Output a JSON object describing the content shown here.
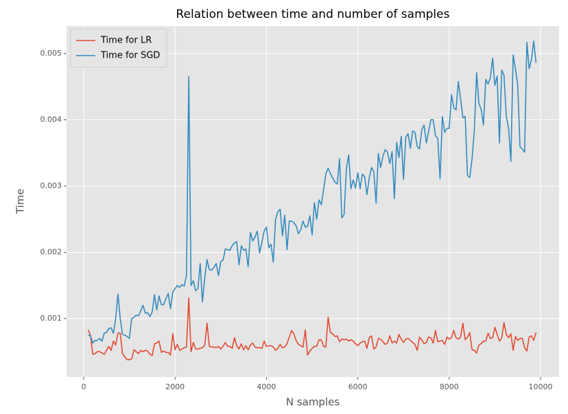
{
  "chart_data": {
    "type": "line",
    "title": "Relation between time and number of samples",
    "xlabel": "N samples",
    "ylabel": "Time",
    "x": [
      100,
      150,
      200,
      250,
      300,
      350,
      400,
      450,
      500,
      550,
      600,
      650,
      700,
      750,
      800,
      850,
      900,
      950,
      1000,
      1050,
      1100,
      1150,
      1200,
      1250,
      1300,
      1350,
      1400,
      1450,
      1500,
      1550,
      1600,
      1650,
      1700,
      1750,
      1800,
      1850,
      1900,
      1950,
      2000,
      2050,
      2100,
      2150,
      2200,
      2250,
      2300,
      2350,
      2400,
      2450,
      2500,
      2550,
      2600,
      2650,
      2700,
      2750,
      2800,
      2850,
      2900,
      2950,
      3000,
      3050,
      3100,
      3150,
      3200,
      3250,
      3300,
      3350,
      3400,
      3450,
      3500,
      3550,
      3600,
      3650,
      3700,
      3750,
      3800,
      3850,
      3900,
      3950,
      4000,
      4050,
      4100,
      4150,
      4200,
      4250,
      4300,
      4350,
      4400,
      4450,
      4500,
      4550,
      4600,
      4650,
      4700,
      4750,
      4800,
      4850,
      4900,
      4950,
      5000,
      5050,
      5100,
      5150,
      5200,
      5250,
      5300,
      5350,
      5400,
      5450,
      5500,
      5550,
      5600,
      5650,
      5700,
      5750,
      5800,
      5850,
      5900,
      5950,
      6000,
      6050,
      6100,
      6150,
      6200,
      6250,
      6300,
      6350,
      6400,
      6450,
      6500,
      6550,
      6600,
      6650,
      6700,
      6750,
      6800,
      6850,
      6900,
      6950,
      7000,
      7050,
      7100,
      7150,
      7200,
      7250,
      7300,
      7350,
      7400,
      7450,
      7500,
      7550,
      7600,
      7650,
      7700,
      7750,
      7800,
      7850,
      7900,
      7950,
      8000,
      8050,
      8100,
      8150,
      8200,
      8250,
      8300,
      8350,
      8400,
      8450,
      8500,
      8550,
      8600,
      8650,
      8700,
      8750,
      8800,
      8850,
      8900,
      8950,
      9000,
      9050,
      9100,
      9150,
      9200,
      9250,
      9300,
      9350,
      9400,
      9450,
      9500,
      9550,
      9600,
      9650,
      9700,
      9750,
      9800,
      9850,
      9900
    ],
    "series": [
      {
        "name": "Time for LR",
        "color": "#e24a33",
        "values": [
          0.00083,
          0.00074,
          0.00046,
          0.00047,
          0.0005,
          0.0005,
          0.00048,
          0.00046,
          0.00052,
          0.00058,
          0.00052,
          0.00066,
          0.0006,
          0.00078,
          0.00078,
          0.00047,
          0.00042,
          0.00038,
          0.00038,
          0.00039,
          0.00053,
          0.0005,
          0.00047,
          0.00052,
          0.0005,
          0.00052,
          0.00051,
          0.00046,
          0.00044,
          0.00062,
          0.00063,
          0.00066,
          0.00049,
          0.00051,
          0.00049,
          0.00049,
          0.00045,
          0.00077,
          0.00053,
          0.00061,
          0.00052,
          0.00054,
          0.00056,
          0.00057,
          0.00131,
          0.0005,
          0.00064,
          0.00054,
          0.00054,
          0.00055,
          0.00056,
          0.0006,
          0.00093,
          0.00058,
          0.00057,
          0.00057,
          0.00056,
          0.00058,
          0.00054,
          0.00058,
          0.00064,
          0.00058,
          0.00058,
          0.00055,
          0.00071,
          0.00059,
          0.00054,
          0.00062,
          0.00053,
          0.00059,
          0.00053,
          0.0006,
          0.00063,
          0.00057,
          0.00056,
          0.00056,
          0.00055,
          0.00066,
          0.00058,
          0.00059,
          0.00059,
          0.00057,
          0.00052,
          0.00055,
          0.00061,
          0.00056,
          0.00057,
          0.00062,
          0.00072,
          0.00082,
          0.00077,
          0.00067,
          0.00061,
          0.00059,
          0.00057,
          0.00083,
          0.00045,
          0.00051,
          0.00055,
          0.00058,
          0.00058,
          0.00068,
          0.00068,
          0.00058,
          0.00057,
          0.00102,
          0.00079,
          0.00077,
          0.00073,
          0.00074,
          0.00065,
          0.00069,
          0.00068,
          0.00069,
          0.00066,
          0.00068,
          0.00066,
          0.00062,
          0.00059,
          0.00063,
          0.00065,
          0.00066,
          0.00055,
          0.00071,
          0.00074,
          0.00054,
          0.00057,
          0.0007,
          0.00069,
          0.00065,
          0.00061,
          0.00063,
          0.00074,
          0.00063,
          0.00066,
          0.00063,
          0.00076,
          0.00069,
          0.00064,
          0.00069,
          0.0007,
          0.00067,
          0.00064,
          0.00061,
          0.00052,
          0.00072,
          0.00068,
          0.00062,
          0.00064,
          0.00072,
          0.00071,
          0.00063,
          0.00082,
          0.00065,
          0.00066,
          0.00067,
          0.00061,
          0.00072,
          0.00069,
          0.00071,
          0.00082,
          0.00071,
          0.00069,
          0.00072,
          0.00093,
          0.00068,
          0.00072,
          0.00079,
          0.00053,
          0.00052,
          0.00048,
          0.0006,
          0.00062,
          0.00066,
          0.00066,
          0.00078,
          0.0007,
          0.00071,
          0.00087,
          0.00076,
          0.00066,
          0.00071,
          0.00094,
          0.00076,
          0.00071,
          0.00077,
          0.00052,
          0.00073,
          0.00067,
          0.0007,
          0.0007,
          0.00056,
          0.00051,
          0.00072,
          0.00074,
          0.00067,
          0.00079
        ]
      },
      {
        "name": "Time for SGD",
        "color": "#348abd",
        "values": [
          0.00075,
          0.00074,
          0.00063,
          0.00067,
          0.00067,
          0.0007,
          0.00066,
          0.00078,
          0.00079,
          0.00085,
          0.00086,
          0.00078,
          0.001,
          0.00137,
          0.001,
          0.00076,
          0.00075,
          0.00073,
          0.0007,
          0.001,
          0.00102,
          0.00105,
          0.00104,
          0.00112,
          0.0012,
          0.00108,
          0.00109,
          0.00103,
          0.0011,
          0.00136,
          0.00113,
          0.00134,
          0.00121,
          0.00121,
          0.0013,
          0.00138,
          0.00115,
          0.0014,
          0.00145,
          0.0015,
          0.00147,
          0.00151,
          0.00149,
          0.00165,
          0.00465,
          0.0015,
          0.00157,
          0.00142,
          0.00145,
          0.00183,
          0.00125,
          0.00162,
          0.00189,
          0.00174,
          0.00173,
          0.00177,
          0.00183,
          0.00165,
          0.00186,
          0.00188,
          0.00205,
          0.00204,
          0.00203,
          0.0021,
          0.00214,
          0.00216,
          0.00181,
          0.0021,
          0.00203,
          0.00205,
          0.00178,
          0.0023,
          0.00217,
          0.00223,
          0.00232,
          0.00199,
          0.00215,
          0.00232,
          0.00238,
          0.00207,
          0.00212,
          0.00185,
          0.0025,
          0.00261,
          0.00265,
          0.00225,
          0.00256,
          0.00204,
          0.00247,
          0.00247,
          0.00245,
          0.0024,
          0.00228,
          0.00234,
          0.00247,
          0.00238,
          0.00239,
          0.00255,
          0.00226,
          0.00275,
          0.0025,
          0.00279,
          0.00272,
          0.00294,
          0.00318,
          0.00327,
          0.00319,
          0.00312,
          0.00306,
          0.00303,
          0.00341,
          0.00252,
          0.00257,
          0.00326,
          0.00347,
          0.00296,
          0.00309,
          0.00297,
          0.0032,
          0.00296,
          0.00318,
          0.00314,
          0.00287,
          0.00312,
          0.00328,
          0.00322,
          0.00274,
          0.00349,
          0.00328,
          0.00345,
          0.00355,
          0.00351,
          0.00334,
          0.00352,
          0.00281,
          0.00366,
          0.00343,
          0.00375,
          0.0031,
          0.00374,
          0.00379,
          0.00357,
          0.00383,
          0.00381,
          0.0036,
          0.00356,
          0.00385,
          0.00392,
          0.00365,
          0.00383,
          0.004,
          0.004,
          0.00376,
          0.00372,
          0.00311,
          0.00405,
          0.00381,
          0.00387,
          0.00387,
          0.00438,
          0.00418,
          0.00415,
          0.00458,
          0.00431,
          0.00403,
          0.00405,
          0.00316,
          0.00313,
          0.00341,
          0.00384,
          0.00471,
          0.00425,
          0.00416,
          0.00392,
          0.00461,
          0.00454,
          0.00463,
          0.00493,
          0.00452,
          0.00466,
          0.00365,
          0.00475,
          0.00467,
          0.00405,
          0.00387,
          0.00337,
          0.00498,
          0.00477,
          0.00452,
          0.00359,
          0.00356,
          0.00351,
          0.00517,
          0.00477,
          0.00491,
          0.00519,
          0.00486
        ]
      }
    ],
    "xlim": [
      -375,
      10405
    ],
    "xticks": [
      0,
      2000,
      4000,
      6000,
      8000,
      10000
    ],
    "ylim": [
      0.000119,
      0.005414
    ],
    "yticks": [
      0.001,
      0.002,
      0.003,
      0.004,
      0.005
    ],
    "grid": true,
    "legend": "upper left"
  }
}
